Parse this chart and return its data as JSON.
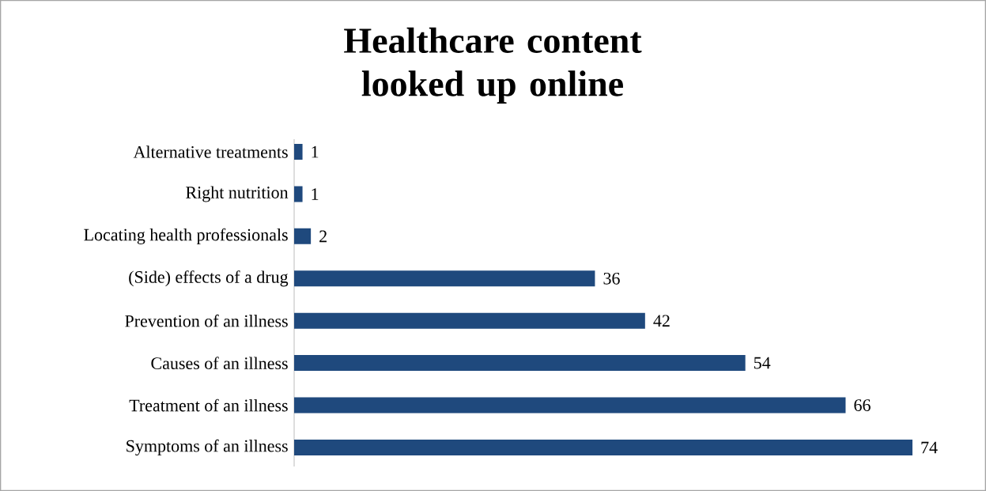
{
  "chart_data": {
    "type": "bar",
    "orientation": "horizontal",
    "title": "Healthcare content looked up online",
    "categories": [
      "Alternative treatments",
      "Right nutrition",
      "Locating health professionals",
      "(Side) effects of a drug",
      "Prevention of an illness",
      "Causes of an illness",
      "Treatment of an illness",
      "Symptoms of an illness"
    ],
    "values": [
      1,
      1,
      2,
      36,
      42,
      54,
      66,
      74
    ],
    "color": "#1f497d",
    "data_labels": true
  }
}
